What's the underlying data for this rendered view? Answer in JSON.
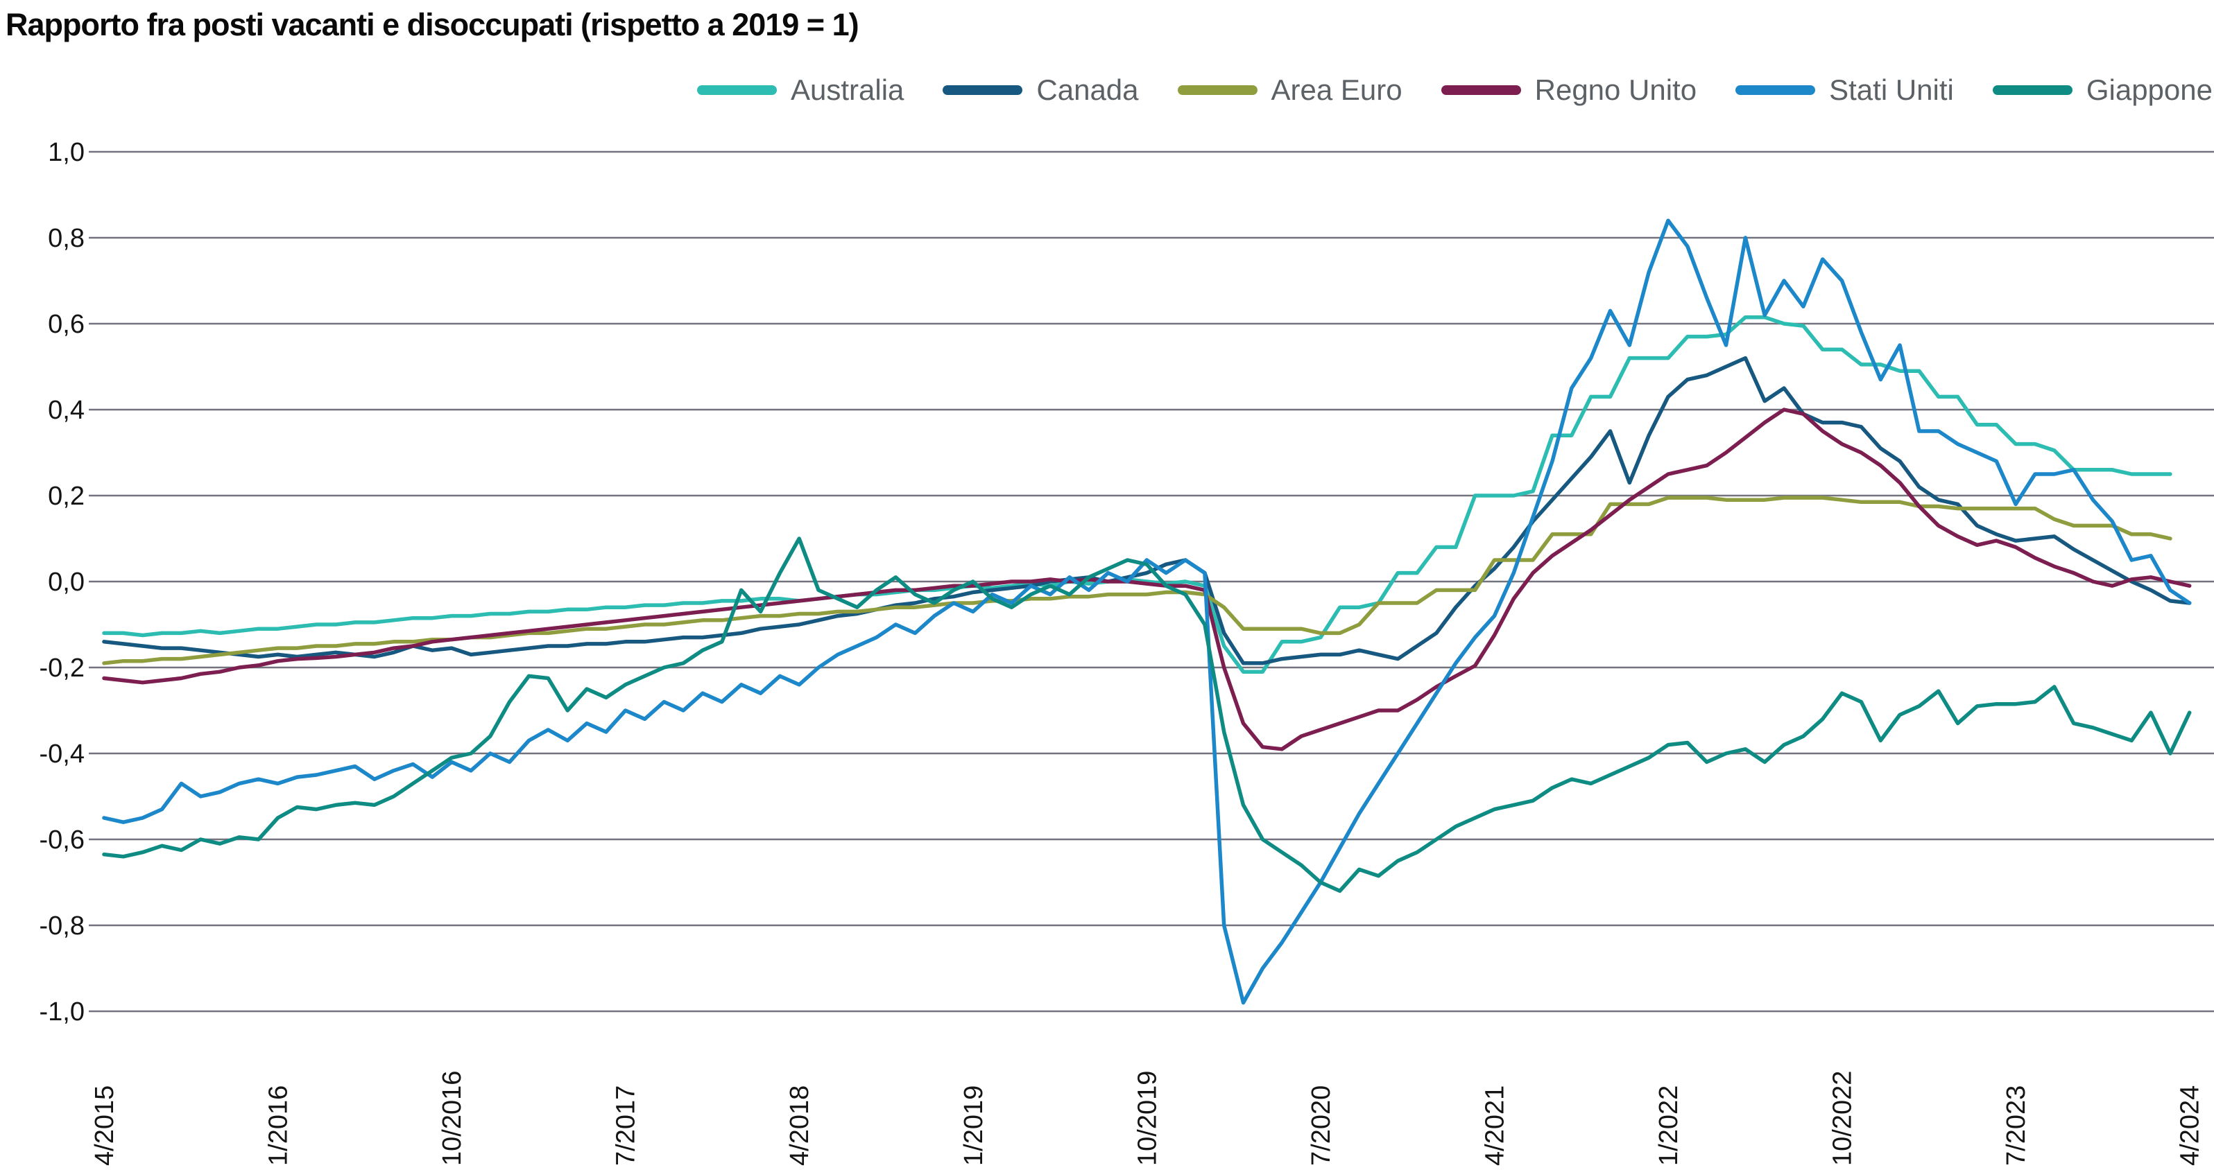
{
  "title": "Rapporto fra posti vacanti e disoccupati (rispetto a 2019 = 1)",
  "colors": {
    "grid": "#73737e",
    "axis_text": "#141414",
    "legend_text": "#5c6166",
    "title_text": "#0a0a0a",
    "background": "#ffffff"
  },
  "chart_data": {
    "type": "line",
    "title": "Rapporto fra posti vacanti e disoccupati (rispetto a 2019 = 1)",
    "xlabel": "",
    "ylabel": "",
    "x_start_label": "4/2015",
    "x_end_label": "4/2024",
    "x_months_span": 108,
    "x_tick_months": [
      0,
      9,
      18,
      27,
      36,
      45,
      54,
      63,
      72,
      81,
      90,
      99,
      108
    ],
    "x_tick_labels": [
      "4/2015",
      "1/2016",
      "10/2016",
      "7/2017",
      "4/2018",
      "1/2019",
      "10/2019",
      "7/2020",
      "4/2021",
      "1/2022",
      "10/2022",
      "7/2023",
      "4/2024"
    ],
    "ylim": [
      -1.0,
      1.0
    ],
    "y_tick_values": [
      1.0,
      0.8,
      0.6,
      0.4,
      0.2,
      0.0,
      -0.2,
      -0.4,
      -0.6,
      -0.8,
      -1.0
    ],
    "y_tick_labels": [
      "1,0",
      "0,8",
      "0,6",
      "0,4",
      "0,2",
      "0,0",
      "-0,2",
      "-0,4",
      "-0,6",
      "-0,8",
      "-1,0"
    ],
    "grid": true,
    "legend_position": "top",
    "series": [
      {
        "name": "Australia",
        "color": "#2cbcb1",
        "values": [
          -0.12,
          -0.12,
          -0.125,
          -0.12,
          -0.12,
          -0.115,
          -0.12,
          -0.115,
          -0.11,
          -0.11,
          -0.105,
          -0.1,
          -0.1,
          -0.095,
          -0.095,
          -0.09,
          -0.085,
          -0.085,
          -0.08,
          -0.08,
          -0.075,
          -0.075,
          -0.07,
          -0.07,
          -0.065,
          -0.065,
          -0.06,
          -0.06,
          -0.055,
          -0.055,
          -0.05,
          -0.05,
          -0.045,
          -0.045,
          -0.04,
          -0.04,
          -0.045,
          -0.04,
          -0.035,
          -0.03,
          -0.03,
          -0.025,
          -0.02,
          -0.02,
          -0.015,
          -0.01,
          -0.015,
          -0.01,
          -0.005,
          -0.01,
          0,
          -0.005,
          0,
          0.005,
          0,
          -0.005,
          0,
          -0.01,
          -0.15,
          -0.21,
          -0.21,
          -0.14,
          -0.14,
          -0.13,
          -0.06,
          -0.06,
          -0.05,
          0.02,
          0.02,
          0.08,
          0.08,
          0.2,
          0.2,
          0.2,
          0.21,
          0.34,
          0.34,
          0.43,
          0.43,
          0.52,
          0.52,
          0.52,
          0.57,
          0.57,
          0.575,
          0.615,
          0.615,
          0.6,
          0.595,
          0.54,
          0.54,
          0.505,
          0.505,
          0.49,
          0.49,
          0.43,
          0.43,
          0.365,
          0.365,
          0.32,
          0.32,
          0.305,
          0.26,
          0.26,
          0.26,
          0.25,
          0.25,
          0.25,
          null
        ]
      },
      {
        "name": "Canada",
        "color": "#16587f",
        "values": [
          -0.14,
          -0.145,
          -0.15,
          -0.155,
          -0.155,
          -0.16,
          -0.165,
          -0.17,
          -0.175,
          -0.17,
          -0.175,
          -0.17,
          -0.165,
          -0.17,
          -0.175,
          -0.165,
          -0.15,
          -0.16,
          -0.155,
          -0.17,
          -0.165,
          -0.16,
          -0.155,
          -0.15,
          -0.15,
          -0.145,
          -0.145,
          -0.14,
          -0.14,
          -0.135,
          -0.13,
          -0.13,
          -0.125,
          -0.12,
          -0.11,
          -0.105,
          -0.1,
          -0.09,
          -0.08,
          -0.075,
          -0.065,
          -0.055,
          -0.05,
          -0.04,
          -0.035,
          -0.025,
          -0.02,
          -0.015,
          -0.01,
          0,
          0.005,
          0.01,
          0,
          0.01,
          0.02,
          0.04,
          0.05,
          0.02,
          -0.12,
          -0.19,
          -0.19,
          -0.18,
          -0.175,
          -0.17,
          -0.17,
          -0.16,
          -0.17,
          -0.18,
          -0.15,
          -0.12,
          -0.06,
          -0.01,
          0.03,
          0.08,
          0.14,
          0.19,
          0.24,
          0.29,
          0.35,
          0.23,
          0.34,
          0.43,
          0.47,
          0.48,
          0.5,
          0.52,
          0.42,
          0.45,
          0.39,
          0.37,
          0.37,
          0.36,
          0.31,
          0.28,
          0.22,
          0.19,
          0.18,
          0.13,
          0.11,
          0.095,
          0.1,
          0.105,
          0.075,
          0.05,
          0.025,
          0,
          -0.02,
          -0.045,
          -0.05
        ]
      },
      {
        "name": "Area Euro",
        "color": "#8f9d3f",
        "values": [
          -0.19,
          -0.185,
          -0.185,
          -0.18,
          -0.18,
          -0.175,
          -0.17,
          -0.165,
          -0.16,
          -0.155,
          -0.155,
          -0.15,
          -0.15,
          -0.145,
          -0.145,
          -0.14,
          -0.14,
          -0.135,
          -0.135,
          -0.13,
          -0.13,
          -0.125,
          -0.12,
          -0.12,
          -0.115,
          -0.11,
          -0.11,
          -0.105,
          -0.1,
          -0.1,
          -0.095,
          -0.09,
          -0.09,
          -0.085,
          -0.08,
          -0.08,
          -0.075,
          -0.075,
          -0.07,
          -0.07,
          -0.065,
          -0.06,
          -0.06,
          -0.055,
          -0.05,
          -0.05,
          -0.045,
          -0.045,
          -0.04,
          -0.04,
          -0.035,
          -0.035,
          -0.03,
          -0.03,
          -0.03,
          -0.025,
          -0.025,
          -0.03,
          -0.06,
          -0.11,
          -0.11,
          -0.11,
          -0.11,
          -0.12,
          -0.12,
          -0.1,
          -0.05,
          -0.05,
          -0.05,
          -0.02,
          -0.02,
          -0.02,
          0.05,
          0.05,
          0.05,
          0.11,
          0.11,
          0.11,
          0.18,
          0.18,
          0.18,
          0.195,
          0.195,
          0.195,
          0.19,
          0.19,
          0.19,
          0.195,
          0.195,
          0.195,
          0.19,
          0.185,
          0.185,
          0.185,
          0.175,
          0.175,
          0.17,
          0.17,
          0.17,
          0.17,
          0.17,
          0.145,
          0.13,
          0.13,
          0.13,
          0.11,
          0.11,
          0.1,
          null
        ]
      },
      {
        "name": "Regno Unito",
        "color": "#7c1e4f",
        "values": [
          -0.225,
          -0.23,
          -0.235,
          -0.23,
          -0.225,
          -0.215,
          -0.21,
          -0.2,
          -0.195,
          -0.185,
          -0.18,
          -0.178,
          -0.175,
          -0.17,
          -0.165,
          -0.155,
          -0.15,
          -0.14,
          -0.135,
          -0.13,
          -0.125,
          -0.12,
          -0.115,
          -0.11,
          -0.105,
          -0.1,
          -0.095,
          -0.09,
          -0.085,
          -0.08,
          -0.075,
          -0.07,
          -0.065,
          -0.06,
          -0.055,
          -0.05,
          -0.045,
          -0.04,
          -0.035,
          -0.03,
          -0.025,
          -0.02,
          -0.02,
          -0.015,
          -0.01,
          -0.01,
          -0.005,
          0,
          0,
          0.005,
          0,
          0.005,
          0,
          0,
          -0.005,
          -0.01,
          -0.01,
          -0.02,
          -0.2,
          -0.33,
          -0.385,
          -0.39,
          -0.36,
          -0.345,
          -0.33,
          -0.315,
          -0.3,
          -0.3,
          -0.275,
          -0.245,
          -0.22,
          -0.196,
          -0.125,
          -0.04,
          0.02,
          0.06,
          0.09,
          0.12,
          0.155,
          0.19,
          0.22,
          0.25,
          0.26,
          0.27,
          0.3,
          0.335,
          0.37,
          0.4,
          0.39,
          0.35,
          0.32,
          0.3,
          0.27,
          0.23,
          0.175,
          0.13,
          0.105,
          0.085,
          0.095,
          0.08,
          0.055,
          0.035,
          0.02,
          0,
          -0.01,
          0.005,
          0.01,
          0,
          -0.01,
          null
        ]
      },
      {
        "name": "Stati Uniti",
        "color": "#1c87c9",
        "values": [
          -0.55,
          -0.56,
          -0.55,
          -0.53,
          -0.47,
          -0.5,
          -0.49,
          -0.47,
          -0.46,
          -0.47,
          -0.455,
          -0.45,
          -0.44,
          -0.43,
          -0.46,
          -0.44,
          -0.425,
          -0.455,
          -0.42,
          -0.44,
          -0.4,
          -0.42,
          -0.37,
          -0.345,
          -0.37,
          -0.33,
          -0.35,
          -0.3,
          -0.32,
          -0.28,
          -0.3,
          -0.26,
          -0.28,
          -0.24,
          -0.26,
          -0.22,
          -0.24,
          -0.2,
          -0.17,
          -0.15,
          -0.13,
          -0.1,
          -0.12,
          -0.08,
          -0.05,
          -0.07,
          -0.03,
          -0.05,
          -0.01,
          -0.03,
          0.01,
          -0.02,
          0.02,
          0,
          0.05,
          0.02,
          0.05,
          0.02,
          -0.8,
          -0.98,
          -0.9,
          -0.84,
          -0.77,
          -0.7,
          -0.62,
          -0.54,
          -0.47,
          -0.4,
          -0.33,
          -0.26,
          -0.19,
          -0.13,
          -0.08,
          0.02,
          0.15,
          0.28,
          0.45,
          0.52,
          0.63,
          0.55,
          0.72,
          0.84,
          0.78,
          0.66,
          0.55,
          0.8,
          0.62,
          0.7,
          0.64,
          0.75,
          0.7,
          0.58,
          0.47,
          0.55,
          0.35,
          0.35,
          0.32,
          0.3,
          0.28,
          0.18,
          0.25,
          0.25,
          0.26,
          0.19,
          0.14,
          0.05,
          0.06,
          -0.02,
          -0.05
        ]
      },
      {
        "name": "Giappone",
        "color": "#0e8c84",
        "values": [
          -0.635,
          -0.64,
          -0.63,
          -0.615,
          -0.625,
          -0.6,
          -0.61,
          -0.595,
          -0.6,
          -0.55,
          -0.525,
          -0.53,
          -0.52,
          -0.515,
          -0.52,
          -0.5,
          -0.47,
          -0.44,
          -0.41,
          -0.4,
          -0.36,
          -0.28,
          -0.22,
          -0.225,
          -0.3,
          -0.25,
          -0.27,
          -0.24,
          -0.22,
          -0.2,
          -0.19,
          -0.16,
          -0.14,
          -0.02,
          -0.07,
          0.02,
          0.1,
          -0.02,
          -0.04,
          -0.06,
          -0.02,
          0.01,
          -0.03,
          -0.05,
          -0.02,
          0,
          -0.04,
          -0.06,
          -0.03,
          -0.01,
          -0.03,
          0.01,
          0.03,
          0.05,
          0.04,
          -0.01,
          -0.03,
          -0.1,
          -0.35,
          -0.52,
          -0.6,
          -0.63,
          -0.66,
          -0.7,
          -0.72,
          -0.67,
          -0.685,
          -0.65,
          -0.63,
          -0.6,
          -0.57,
          -0.55,
          -0.53,
          -0.52,
          -0.51,
          -0.48,
          -0.46,
          -0.47,
          -0.45,
          -0.43,
          -0.41,
          -0.38,
          -0.375,
          -0.42,
          -0.4,
          -0.39,
          -0.42,
          -0.38,
          -0.36,
          -0.32,
          -0.26,
          -0.28,
          -0.37,
          -0.31,
          -0.29,
          -0.255,
          -0.33,
          -0.29,
          -0.285,
          -0.285,
          -0.28,
          -0.245,
          -0.33,
          -0.34,
          -0.355,
          -0.37,
          -0.305,
          -0.4,
          -0.305
        ]
      }
    ]
  }
}
